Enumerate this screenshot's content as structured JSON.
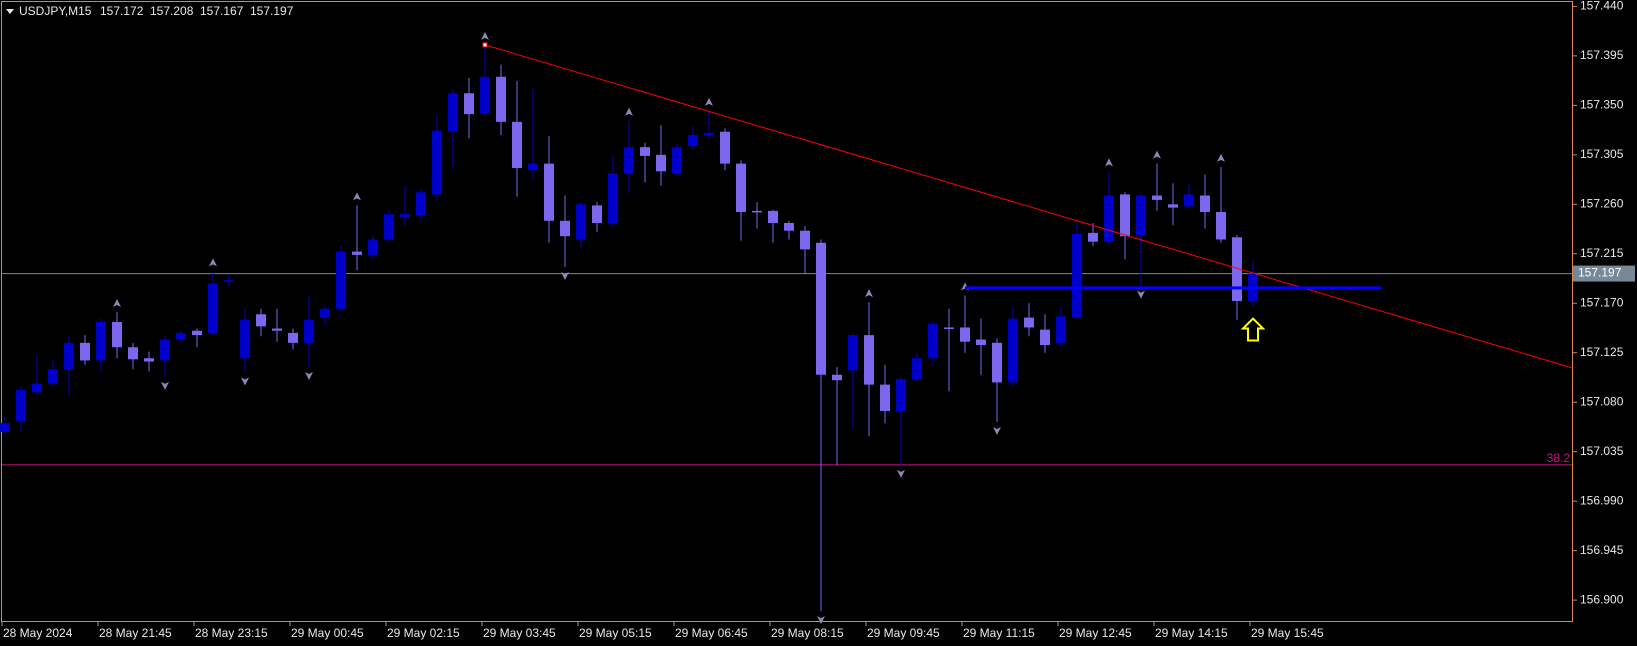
{
  "chart_data": {
    "type": "candlestick",
    "title": "USDJPY,M15",
    "categories": [
      "28 May 2024",
      null,
      null,
      null,
      null,
      null,
      "28 May 21:45",
      null,
      null,
      null,
      null,
      null,
      "28 May 23:15",
      null,
      null,
      null,
      null,
      null,
      "29 May 00:45",
      null,
      null,
      null,
      null,
      null,
      "29 May 02:15",
      null,
      null,
      null,
      null,
      null,
      "29 May 03:45",
      null,
      null,
      null,
      null,
      null,
      "29 May 05:15",
      null,
      null,
      null,
      null,
      null,
      "29 May 06:45",
      null,
      null,
      null,
      null,
      null,
      "29 May 08:15",
      null,
      null,
      null,
      null,
      null,
      "29 May 09:45",
      null,
      null,
      null,
      null,
      null,
      "29 May 11:15",
      null,
      null,
      null,
      null,
      null,
      "29 May 12:45",
      null,
      null,
      null,
      null,
      null,
      "29 May 14:15",
      null,
      null,
      null,
      null,
      null,
      "29 May 15:45"
    ],
    "open": [
      157.053,
      157.063,
      157.089,
      157.097,
      157.11,
      157.134,
      157.118,
      157.153,
      157.13,
      157.12,
      157.118,
      157.137,
      157.145,
      157.143,
      157.19,
      157.12,
      157.16,
      157.147,
      157.143,
      157.134,
      157.157,
      157.165,
      157.217,
      157.214,
      157.228,
      157.248,
      157.25,
      157.269,
      157.326,
      157.361,
      157.343,
      157.376,
      157.335,
      157.291,
      157.297,
      157.245,
      157.228,
      157.259,
      157.243,
      157.288,
      157.312,
      157.305,
      157.288,
      157.313,
      157.323,
      157.326,
      157.297,
      157.254,
      157.254,
      157.243,
      157.236,
      157.225,
      157.105,
      157.109,
      157.141,
      157.096,
      157.072,
      157.101,
      157.12,
      157.148,
      157.148,
      157.137,
      157.134,
      157.098,
      157.157,
      157.146,
      157.134,
      157.157,
      157.234,
      157.226,
      157.269,
      157.232,
      157.268,
      157.26,
      157.258,
      157.268,
      157.253,
      157.23,
      157.172
    ],
    "high": [
      157.066,
      157.094,
      157.122,
      157.118,
      157.141,
      157.141,
      157.156,
      157.162,
      157.134,
      157.126,
      157.14,
      157.145,
      157.147,
      157.199,
      157.196,
      157.165,
      157.165,
      157.165,
      157.147,
      157.177,
      157.168,
      157.222,
      157.259,
      157.232,
      157.254,
      157.277,
      157.274,
      157.341,
      157.365,
      157.375,
      157.405,
      157.387,
      157.372,
      157.365,
      157.322,
      157.268,
      157.262,
      157.262,
      157.305,
      157.336,
      157.316,
      157.332,
      157.315,
      157.331,
      157.345,
      157.329,
      157.3,
      157.262,
      157.255,
      157.245,
      157.24,
      157.228,
      157.112,
      157.143,
      157.171,
      157.114,
      157.103,
      157.124,
      157.153,
      157.165,
      157.177,
      157.156,
      157.138,
      157.166,
      157.17,
      157.16,
      157.168,
      157.243,
      157.243,
      157.29,
      157.271,
      157.27,
      157.297,
      157.279,
      157.279,
      157.287,
      157.294,
      157.232,
      157.208
    ],
    "low": [
      157.05,
      157.053,
      157.086,
      157.094,
      157.087,
      157.114,
      157.108,
      157.12,
      157.11,
      157.108,
      157.103,
      157.134,
      157.13,
      157.141,
      157.185,
      157.107,
      157.14,
      157.135,
      157.128,
      157.112,
      157.15,
      157.162,
      157.2,
      157.21,
      157.225,
      157.24,
      157.245,
      157.263,
      157.292,
      157.32,
      157.34,
      157.323,
      157.267,
      157.283,
      157.225,
      157.203,
      157.22,
      157.235,
      157.239,
      157.27,
      157.28,
      157.277,
      157.285,
      157.31,
      157.319,
      157.291,
      157.227,
      157.238,
      157.225,
      157.228,
      157.197,
      156.89,
      157.023,
      157.057,
      157.049,
      157.061,
      157.023,
      157.099,
      157.115,
      157.09,
      157.125,
      157.105,
      157.062,
      157.094,
      157.14,
      157.125,
      157.13,
      157.156,
      157.222,
      157.222,
      157.21,
      157.186,
      157.254,
      157.241,
      157.258,
      157.238,
      157.225,
      157.155,
      157.167
    ],
    "close": [
      157.061,
      157.091,
      157.097,
      157.11,
      157.134,
      157.118,
      157.153,
      157.13,
      157.119,
      157.117,
      157.137,
      157.143,
      157.141,
      157.188,
      157.191,
      157.155,
      157.149,
      157.145,
      157.134,
      157.155,
      157.165,
      157.217,
      157.214,
      157.228,
      157.251,
      157.251,
      157.271,
      157.327,
      157.361,
      157.342,
      157.376,
      157.335,
      157.293,
      157.297,
      157.245,
      157.231,
      157.26,
      157.243,
      157.288,
      157.312,
      157.304,
      157.29,
      157.312,
      157.323,
      157.325,
      157.297,
      157.253,
      157.253,
      157.243,
      157.236,
      157.219,
      157.105,
      157.1,
      157.141,
      157.096,
      157.072,
      157.101,
      157.12,
      157.151,
      157.147,
      157.135,
      157.132,
      157.098,
      157.156,
      157.148,
      157.132,
      157.158,
      157.233,
      157.226,
      157.268,
      157.231,
      157.268,
      157.264,
      157.257,
      157.269,
      157.253,
      157.228,
      157.172,
      157.197
    ],
    "bull_color": "#0000cd",
    "bear_color": "#7b68ee",
    "fractals_up": [
      7,
      13,
      22,
      30,
      39,
      44,
      54,
      60,
      69,
      72,
      76
    ],
    "fractals_down": [
      10,
      15,
      19,
      35,
      51,
      56,
      62,
      71
    ],
    "ylim": [
      156.881,
      157.444
    ],
    "yticks": [
      {
        "value": 157.44,
        "label": "157.440"
      },
      {
        "value": 157.395,
        "label": "157.395"
      },
      {
        "value": 157.35,
        "label": "157.350"
      },
      {
        "value": 157.305,
        "label": "157.305"
      },
      {
        "value": 157.26,
        "label": "157.260"
      },
      {
        "value": 157.215,
        "label": "157.215"
      },
      {
        "value": 157.17,
        "label": "157.170"
      },
      {
        "value": 157.125,
        "label": "157.125"
      },
      {
        "value": 157.08,
        "label": "157.080"
      },
      {
        "value": 157.035,
        "label": "157.035"
      },
      {
        "value": 156.99,
        "label": "156.990"
      },
      {
        "value": 156.945,
        "label": "156.945"
      },
      {
        "value": 156.9,
        "label": "156.900"
      }
    ],
    "fib": {
      "level": 38.2,
      "price": 157.023,
      "color": "#c71585"
    },
    "trendline": {
      "from": [
        30,
        157.405
      ],
      "to": [
        98,
        157.111
      ],
      "color": "#ff0000"
    },
    "support": {
      "from": [
        60,
        157.184
      ],
      "to": [
        86,
        157.184
      ],
      "color": "#0000ff"
    }
  }
}
